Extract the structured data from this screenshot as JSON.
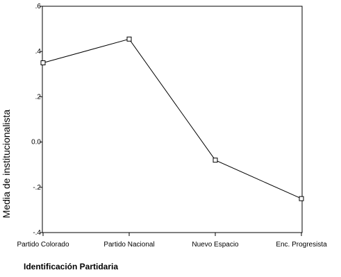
{
  "chart_data": {
    "type": "line",
    "title": "",
    "xlabel": "Identificación Partidaria",
    "ylabel": "Media de institucionalista",
    "categories": [
      "Partido Colorado",
      "Partido Nacional",
      "Nuevo Espacio",
      "Enc. Progresista"
    ],
    "series": [
      {
        "values": [
          0.35,
          0.455,
          -0.08,
          -0.25
        ]
      }
    ],
    "ylim": [
      -0.4,
      0.6
    ],
    "yticks": [
      {
        "value": 0.6,
        "label": ".6"
      },
      {
        "value": 0.4,
        "label": ".4"
      },
      {
        "value": 0.2,
        "label": ".2"
      },
      {
        "value": 0.0,
        "label": "0.0"
      },
      {
        "value": -0.2,
        "label": "-.2"
      },
      {
        "value": -0.4,
        "label": "-.4"
      }
    ],
    "marker": "square-open",
    "grid": false,
    "legend": "none",
    "colors": {
      "line": "#000000",
      "marker": "#000000",
      "background": "#ffffff"
    }
  }
}
